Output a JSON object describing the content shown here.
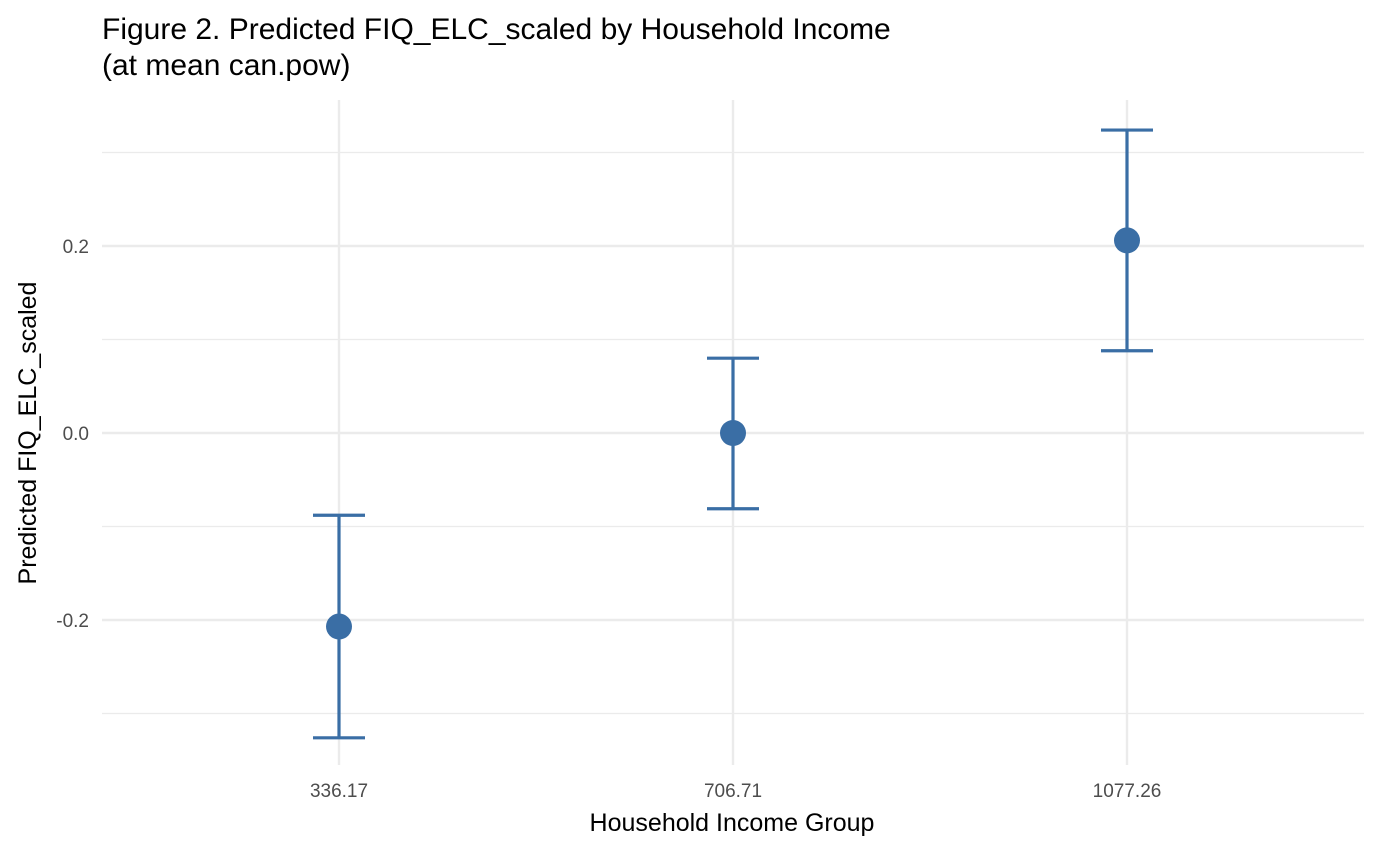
{
  "chart_data": {
    "type": "scatter",
    "title": "Figure 2. Predicted FIQ_ELC_scaled by Household Income",
    "subtitle": "(at mean can.pow)",
    "xlabel": "Household Income Group",
    "ylabel": "Predicted FIQ_ELC_scaled",
    "categories": [
      "336.17",
      "706.71",
      "1077.26"
    ],
    "values": [
      -0.207,
      0.0,
      0.206
    ],
    "error_low": [
      -0.326,
      -0.081,
      0.088
    ],
    "error_high": [
      -0.088,
      0.08,
      0.324
    ],
    "y_ticks": [
      -0.2,
      0.0,
      0.2
    ],
    "y_tick_labels": [
      "-0.2",
      "0.0",
      "0.2"
    ],
    "ylim": [
      -0.352,
      0.355
    ],
    "grid": true,
    "legend": "none",
    "point_color": "#3a6ea5",
    "grid_color": "#ebebeb"
  }
}
